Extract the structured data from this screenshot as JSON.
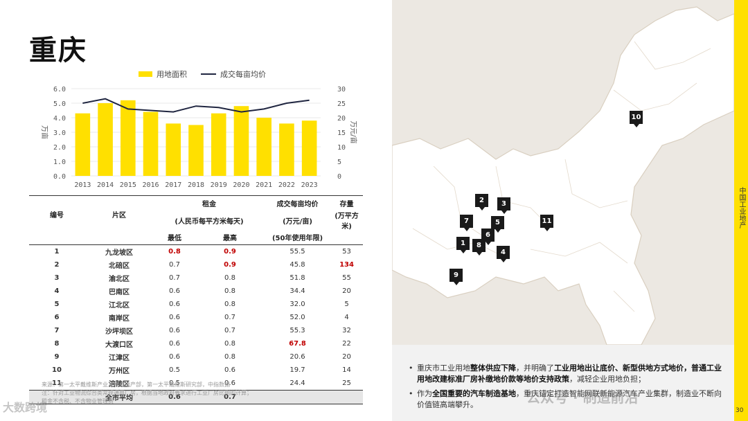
{
  "title": "重庆",
  "chart_data": {
    "type": "bar",
    "categories": [
      "2013",
      "2014",
      "2015",
      "2016",
      "2017",
      "2018",
      "2019",
      "2020",
      "2021",
      "2022",
      "2023"
    ],
    "series": [
      {
        "name": "用地面积",
        "type": "bar",
        "axis": "left",
        "values": [
          4.3,
          5.0,
          5.2,
          4.4,
          3.6,
          3.5,
          4.3,
          4.8,
          4.0,
          3.6,
          3.8
        ]
      },
      {
        "name": "成交每亩均价",
        "type": "line",
        "axis": "right",
        "values": [
          25,
          26.5,
          23,
          22.5,
          22,
          24,
          23.5,
          22,
          23,
          25,
          26
        ]
      }
    ],
    "ylabel": "万亩",
    "y2label": "万元/亩",
    "ylim": [
      0,
      6
    ],
    "y2lim": [
      0,
      30
    ],
    "yticks": [
      "0.0",
      "1.0",
      "2.0",
      "3.0",
      "4.0",
      "5.0",
      "6.0"
    ],
    "y2ticks": [
      "0",
      "5",
      "10",
      "15",
      "20",
      "25",
      "30"
    ],
    "legend": "top",
    "colors": {
      "bar": "#ffe000",
      "line": "#1f2540"
    }
  },
  "table": {
    "headers": {
      "id": "编号",
      "district": "片区",
      "rent": "租金",
      "rent_unit": "(人民币每平方米每天)",
      "rent_min": "最低",
      "rent_max": "最高",
      "price": "成交每亩均价",
      "price_unit": "(万元/亩)",
      "price_note": "(50年使用年限)",
      "stock": "存量",
      "stock_unit": "(万平方米)"
    },
    "rows": [
      {
        "id": "1",
        "district": "九龙坡区",
        "min": "0.8",
        "max": "0.9",
        "price": "55.5",
        "stock": "53"
      },
      {
        "id": "2",
        "district": "北碚区",
        "min": "0.7",
        "max": "0.9",
        "price": "45.8",
        "stock": "134"
      },
      {
        "id": "3",
        "district": "渝北区",
        "min": "0.7",
        "max": "0.8",
        "price": "51.8",
        "stock": "55"
      },
      {
        "id": "4",
        "district": "巴南区",
        "min": "0.6",
        "max": "0.8",
        "price": "34.4",
        "stock": "20"
      },
      {
        "id": "5",
        "district": "江北区",
        "min": "0.6",
        "max": "0.8",
        "price": "32.0",
        "stock": "5"
      },
      {
        "id": "6",
        "district": "南岸区",
        "min": "0.6",
        "max": "0.7",
        "price": "52.0",
        "stock": "4"
      },
      {
        "id": "7",
        "district": "沙坪坝区",
        "min": "0.6",
        "max": "0.7",
        "price": "55.3",
        "stock": "32"
      },
      {
        "id": "8",
        "district": "大渡口区",
        "min": "0.6",
        "max": "0.8",
        "price": "67.8",
        "stock": "22"
      },
      {
        "id": "9",
        "district": "江津区",
        "min": "0.6",
        "max": "0.8",
        "price": "20.6",
        "stock": "20"
      },
      {
        "id": "10",
        "district": "万州区",
        "min": "0.5",
        "max": "0.6",
        "price": "19.7",
        "stock": "14"
      },
      {
        "id": "11",
        "district": "涪陵区",
        "min": "0.5",
        "max": "0.6",
        "price": "24.4",
        "stock": "25"
      }
    ],
    "average": {
      "label": "全市平均",
      "min": "0.6",
      "max": "0.7"
    }
  },
  "notes": {
    "source": "来源：第一太平戴维斯产业及物流地产部，第一太平戴维斯研究部，中指数据",
    "note1": "注：针对工业物流综合类常规通用厂房，根据当地政府要求进行工业厂房比例的计算；",
    "note2": "租金不含税、不含物业管理费"
  },
  "map_markers": [
    "1",
    "2",
    "3",
    "4",
    "5",
    "6",
    "7",
    "8",
    "9",
    "10",
    "11"
  ],
  "bullets": {
    "b1_a": "重庆市工业用地",
    "b1_b": "整体供应下降",
    "b1_c": "，并明确了",
    "b1_d": "工业用地出让底价、新型供地方式地价，普通工业用地改建标准厂房补缴地价款等地价支持政策",
    "b1_e": "，减轻企业用地负担；",
    "b2_a": "作为",
    "b2_b": "全国重要的汽车制造基地",
    "b2_c": "，重庆锚定打造智能网联新能源汽车产业集群，制造业不断向价值链高端攀升。"
  },
  "sidebar_label": "中国工业地产",
  "page_number": "30",
  "watermarks": {
    "left": "大数跨境",
    "right": "公众号 · 制造前沿"
  }
}
